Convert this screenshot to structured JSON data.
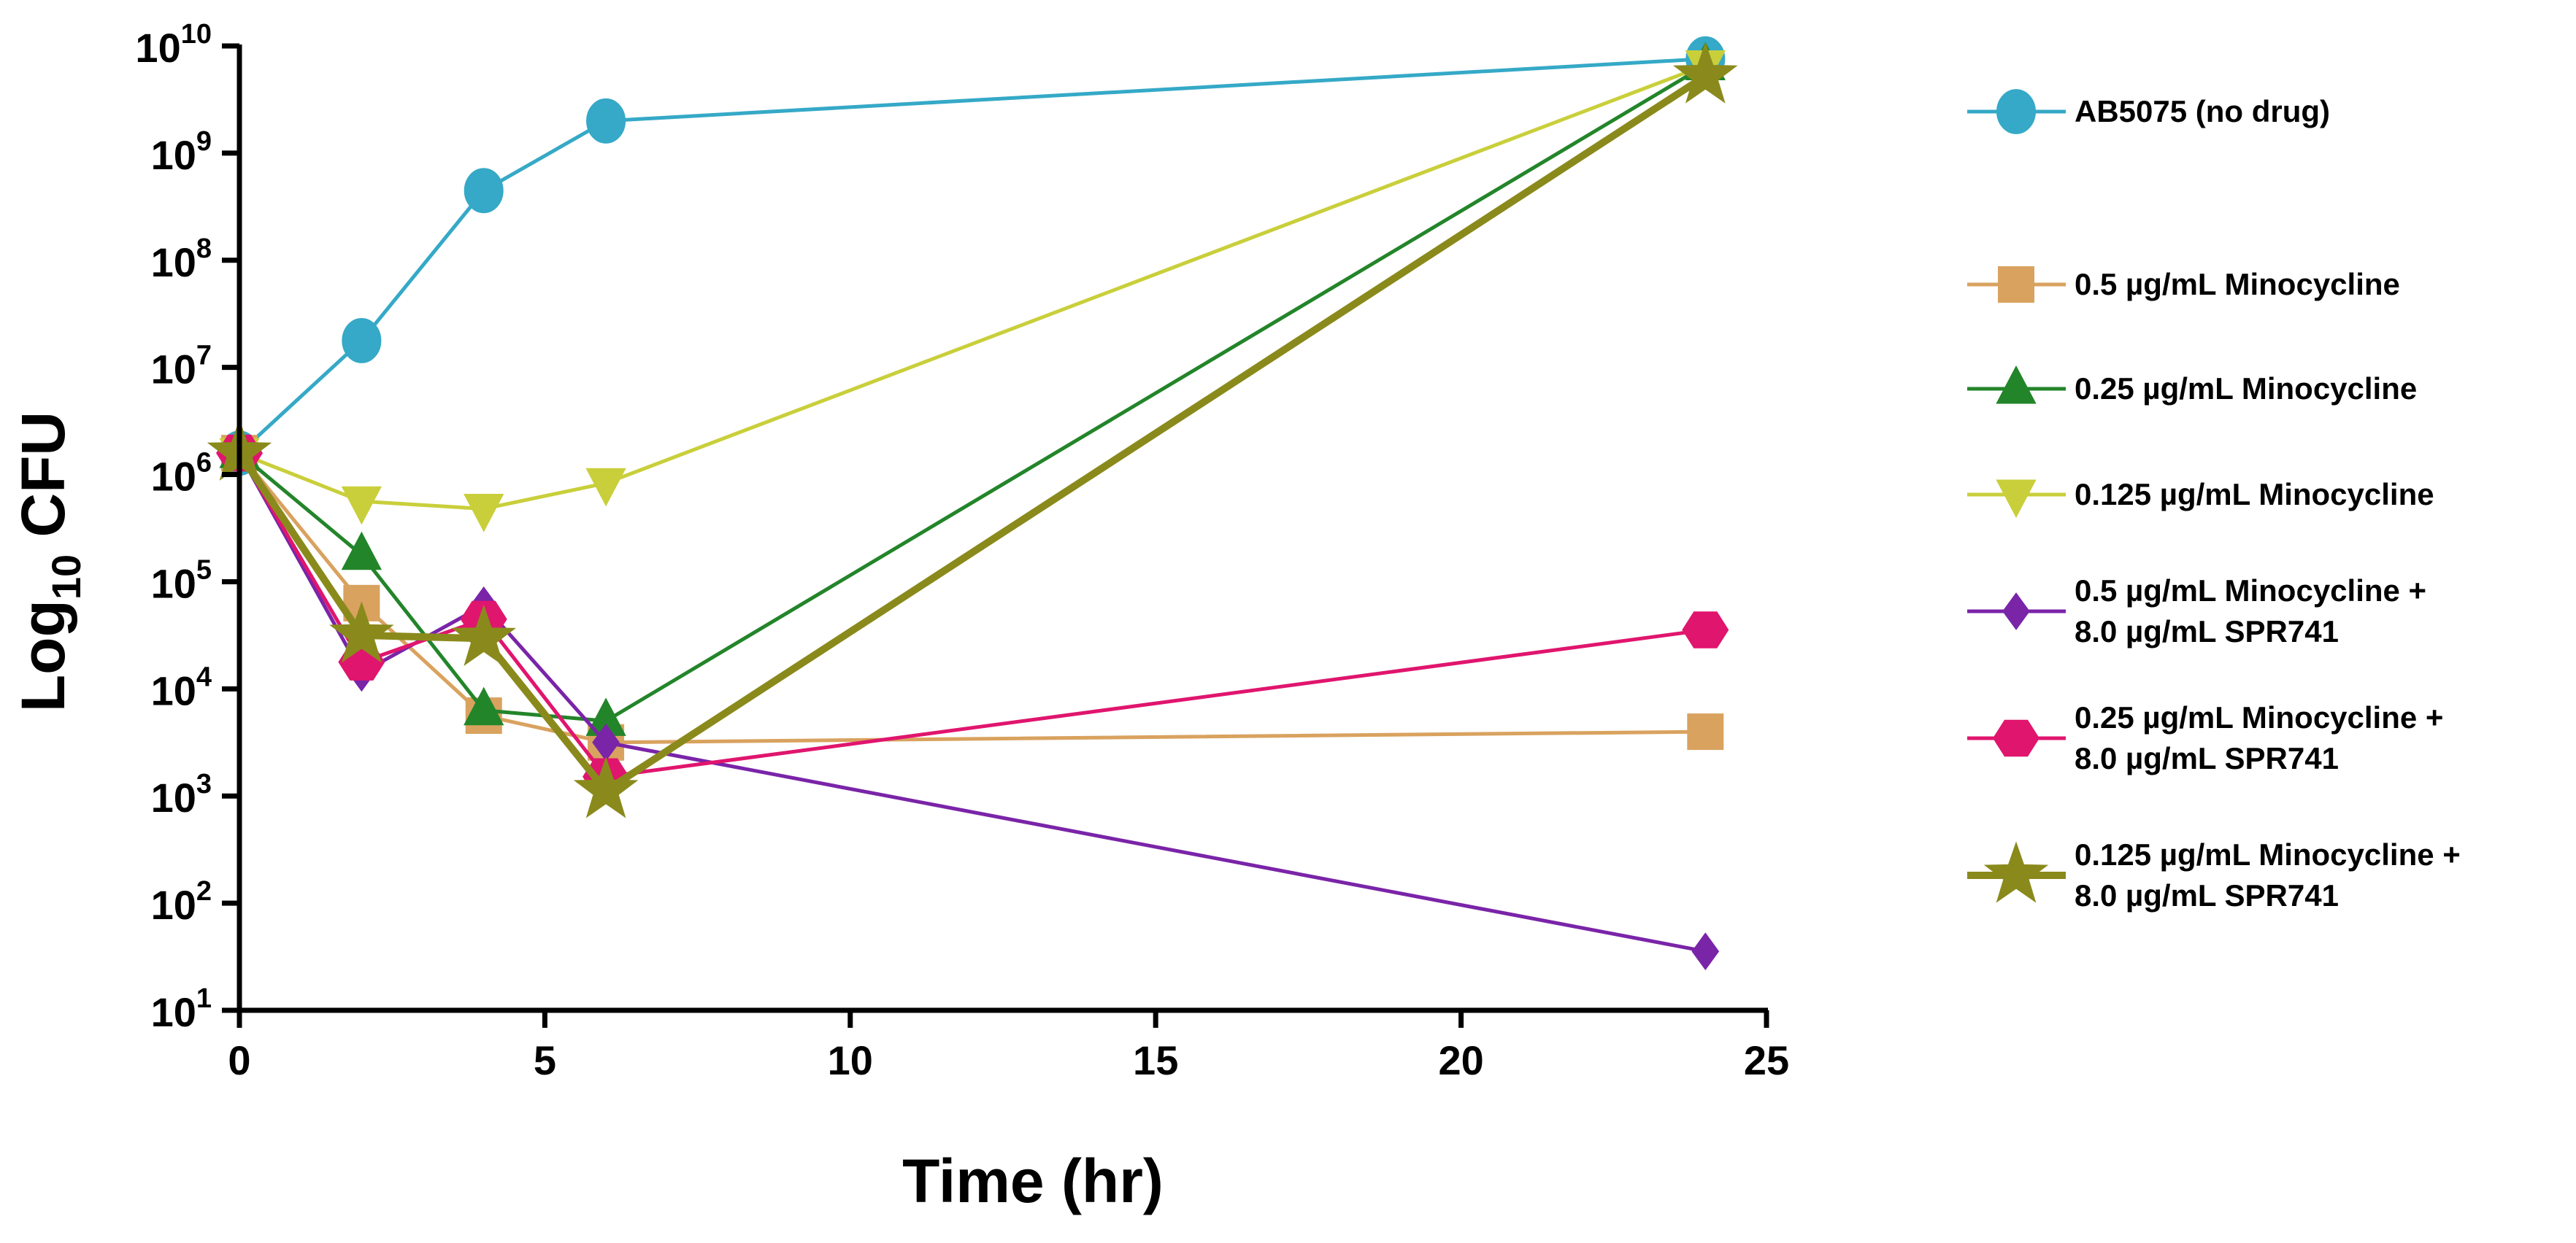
{
  "chart_data": {
    "type": "line",
    "xlabel": "Time (hr)",
    "ylabel_base": "Log",
    "ylabel_sub": "10",
    "ylabel_rest": " CFU",
    "xlim": [
      0,
      25
    ],
    "x_ticks": [
      0,
      5,
      10,
      15,
      20,
      25
    ],
    "y_scale": "log10",
    "ylim_log10": [
      1,
      10
    ],
    "y_tick_base": "10",
    "y_tick_exponents": [
      "1",
      "2",
      "3",
      "4",
      "5",
      "6",
      "7",
      "8",
      "9",
      "10"
    ],
    "y_tick_values": [
      1,
      2,
      3,
      4,
      5,
      6,
      7,
      8,
      9,
      10
    ],
    "x": [
      0,
      2,
      4,
      6,
      24
    ],
    "series": [
      {
        "name": "AB5075 (no drug)",
        "legend_lines": [
          "AB5075 (no drug)"
        ],
        "color": "#35A9C7",
        "marker": "circle",
        "y_log10": [
          6.2,
          7.25,
          8.65,
          9.3,
          9.88
        ]
      },
      {
        "name": "0.5 µg/mL Minocycline",
        "legend_lines": [
          "0.5 µg/mL Minocycline"
        ],
        "color": "#D9A25F",
        "marker": "square",
        "y_log10": [
          6.2,
          4.8,
          3.75,
          3.5,
          3.6
        ]
      },
      {
        "name": "0.25 µg/mL Minocycline",
        "legend_lines": [
          "0.25 µg/mL Minocycline"
        ],
        "color": "#23852A",
        "marker": "triangle-up",
        "y_log10": [
          6.2,
          5.25,
          3.8,
          3.7,
          9.82
        ]
      },
      {
        "name": "0.125 µg/mL Minocycline",
        "legend_lines": [
          "0.125 µg/mL Minocycline"
        ],
        "color": "#C9CF3A",
        "marker": "triangle-down",
        "y_log10": [
          6.2,
          5.75,
          5.68,
          5.92,
          9.82
        ]
      },
      {
        "name": "0.5 µg/mL Minocycline + 8.0 µg/mL SPR741",
        "legend_lines": [
          "0.5 µg/mL Minocycline +",
          "8.0 µg/mL SPR741"
        ],
        "color": "#7A24A8",
        "marker": "diamond",
        "y_log10": [
          6.2,
          4.15,
          4.78,
          3.5,
          1.55
        ]
      },
      {
        "name": "0.25 µg/mL Minocycline + 8.0 µg/mL SPR741",
        "legend_lines": [
          "0.25 µg/mL Minocycline +",
          "8.0 µg/mL SPR741"
        ],
        "color": "#E0156E",
        "marker": "hexagon",
        "y_log10": [
          6.2,
          4.25,
          4.65,
          3.18,
          4.55
        ]
      },
      {
        "name": "0.125 µg/mL Minocycline + 8.0 µg/mL SPR741",
        "legend_lines": [
          "0.125 µg/mL Minocycline +",
          "8.0 µg/mL SPR741"
        ],
        "color": "#8A8A1C",
        "marker": "star",
        "y_log10": [
          6.2,
          4.5,
          4.47,
          3.05,
          9.72
        ]
      }
    ],
    "legend_position": "right"
  }
}
